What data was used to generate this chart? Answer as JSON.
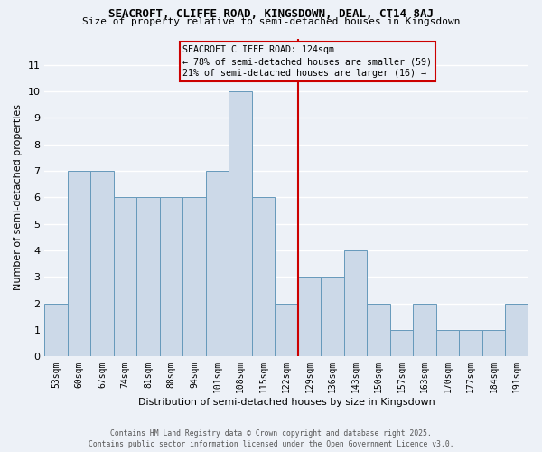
{
  "title1": "SEACROFT, CLIFFE ROAD, KINGSDOWN, DEAL, CT14 8AJ",
  "title2": "Size of property relative to semi-detached houses in Kingsdown",
  "xlabel": "Distribution of semi-detached houses by size in Kingsdown",
  "ylabel": "Number of semi-detached properties",
  "categories": [
    "53sqm",
    "60sqm",
    "67sqm",
    "74sqm",
    "81sqm",
    "88sqm",
    "94sqm",
    "101sqm",
    "108sqm",
    "115sqm",
    "122sqm",
    "129sqm",
    "136sqm",
    "143sqm",
    "150sqm",
    "157sqm",
    "163sqm",
    "170sqm",
    "177sqm",
    "184sqm",
    "191sqm"
  ],
  "values": [
    2,
    7,
    7,
    6,
    6,
    6,
    6,
    7,
    10,
    6,
    2,
    3,
    3,
    4,
    2,
    1,
    2,
    1,
    1,
    1,
    2
  ],
  "bar_color": "#ccd9e8",
  "bar_edge_color": "#6699bb",
  "line_color": "#cc0000",
  "box_color": "#cc0000",
  "background_color": "#edf1f7",
  "grid_color": "#ffffff",
  "annotation_line1": "SEACROFT CLIFFE ROAD: 124sqm",
  "annotation_line2": "← 78% of semi-detached houses are smaller (59)",
  "annotation_line3": "21% of semi-detached houses are larger (16) →",
  "ylim": [
    0,
    12
  ],
  "yticks": [
    0,
    1,
    2,
    3,
    4,
    5,
    6,
    7,
    8,
    9,
    10,
    11
  ],
  "footer": "Contains HM Land Registry data © Crown copyright and database right 2025.\nContains public sector information licensed under the Open Government Licence v3.0."
}
